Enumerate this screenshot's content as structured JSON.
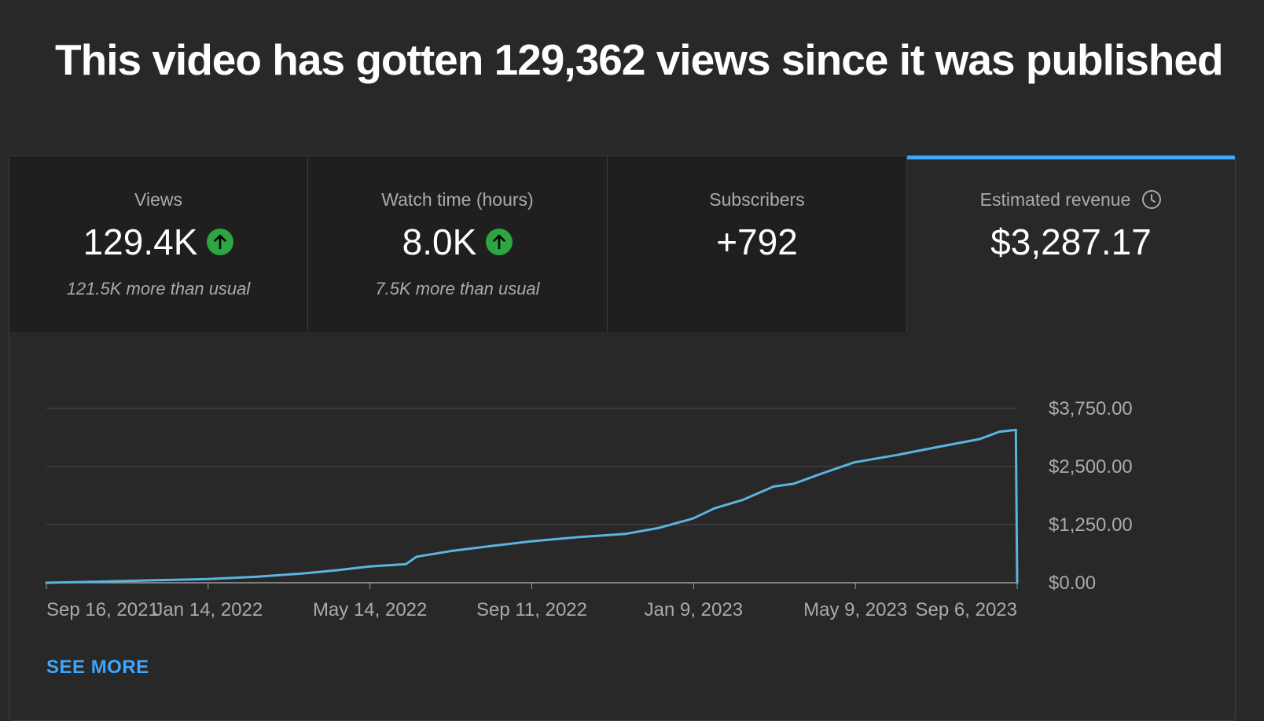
{
  "headline": "This video has gotten 129,362 views since it was published",
  "tabs": [
    {
      "title": "Views",
      "value": "129.4K",
      "trend": "up",
      "subtitle": "121.5K more than usual"
    },
    {
      "title": "Watch time (hours)",
      "value": "8.0K",
      "trend": "up",
      "subtitle": "7.5K more than usual"
    },
    {
      "title": "Subscribers",
      "value": "+792",
      "trend": "",
      "subtitle": ""
    },
    {
      "title": "Estimated revenue",
      "value": "$3,287.17",
      "trend": "",
      "subtitle": "",
      "icon": "clock-icon",
      "active": true
    }
  ],
  "see_more_label": "SEE MORE",
  "colors": {
    "accent": "#3ea6ff",
    "line": "#5ab4e0",
    "up": "#2ba640"
  },
  "chart_data": {
    "type": "line",
    "series": [
      {
        "x": [
          "2021-09-16",
          "2021-10-20",
          "2021-12-01",
          "2022-01-14",
          "2022-02-20",
          "2022-03-25",
          "2022-04-20",
          "2022-05-14",
          "2022-06-10",
          "2022-06-18",
          "2022-07-15",
          "2022-08-15",
          "2022-09-11",
          "2022-10-15",
          "2022-11-20",
          "2022-12-15",
          "2023-01-09",
          "2023-01-25",
          "2023-02-15",
          "2023-03-10",
          "2023-03-25",
          "2023-04-15",
          "2023-05-09",
          "2023-06-10",
          "2023-07-10",
          "2023-08-10",
          "2023-08-25",
          "2023-09-06",
          "2023-09-07"
        ],
        "y": [
          0,
          20,
          50,
          80,
          130,
          200,
          270,
          350,
          400,
          560,
          690,
          800,
          890,
          980,
          1050,
          1180,
          1380,
          1600,
          1780,
          2070,
          2130,
          2350,
          2590,
          2750,
          2920,
          3090,
          3250,
          3287.17,
          0
        ]
      }
    ],
    "x_ticks": [
      "Sep 16, 2021",
      "Jan 14, 2022",
      "May 14, 2022",
      "Sep 11, 2022",
      "Jan 9, 2023",
      "May 9, 2023",
      "Sep 6, 2023"
    ],
    "y_ticks": [
      "$3,750.00",
      "$2,500.00",
      "$1,250.00",
      "$0.00"
    ],
    "y_tick_values": [
      3750,
      2500,
      1250,
      0
    ],
    "xlim": [
      "2021-09-16",
      "2023-09-07"
    ],
    "ylim": [
      0,
      3750
    ],
    "grid": true,
    "legend": "none"
  }
}
